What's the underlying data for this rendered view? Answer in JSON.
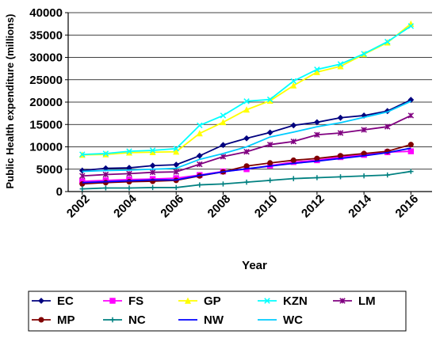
{
  "chart_data": {
    "type": "line",
    "title": "",
    "xlabel": "Year",
    "ylabel": "Public Health expenditure (millions)",
    "xlim": [
      2002,
      2016
    ],
    "ylim": [
      0,
      40000
    ],
    "x_ticks": [
      "2002",
      "2004",
      "2006",
      "2008",
      "2010",
      "2012",
      "2014",
      "2016"
    ],
    "y_ticks": [
      "0",
      "5000",
      "10000",
      "15000",
      "20000",
      "25000",
      "30000",
      "35000",
      "40000"
    ],
    "grid": "horizontal",
    "legend_position": "bottom",
    "x": [
      2002,
      2003,
      2004,
      2005,
      2006,
      2007,
      2008,
      2009,
      2010,
      2011,
      2012,
      2013,
      2014,
      2015,
      2016
    ],
    "series": [
      {
        "name": "EC",
        "color": "#00007f",
        "marker": "diamond",
        "values": [
          4700,
          5200,
          5300,
          5800,
          6000,
          8000,
          10400,
          11900,
          13200,
          14800,
          15500,
          16500,
          17000,
          18000,
          20500
        ]
      },
      {
        "name": "FS",
        "color": "#ff00ff",
        "marker": "square",
        "values": [
          2300,
          2500,
          2700,
          2800,
          3000,
          3700,
          4500,
          5000,
          5800,
          6600,
          7000,
          7700,
          8200,
          8800,
          9000
        ]
      },
      {
        "name": "GP",
        "color": "#ffff00",
        "marker": "triangle",
        "values": [
          8200,
          8300,
          8700,
          8800,
          8900,
          13000,
          15500,
          18300,
          20300,
          23700,
          26700,
          28000,
          30700,
          33300,
          37500
        ]
      },
      {
        "name": "KZN",
        "color": "#00ffff",
        "marker": "x",
        "values": [
          8300,
          8500,
          9000,
          9200,
          9600,
          14800,
          17000,
          20200,
          20600,
          24700,
          27300,
          28500,
          30800,
          33500,
          37000
        ]
      },
      {
        "name": "LM",
        "color": "#800080",
        "marker": "star",
        "values": [
          3500,
          3800,
          4000,
          4300,
          4400,
          6100,
          7800,
          8900,
          10500,
          11200,
          12700,
          13100,
          13800,
          14500,
          17000
        ]
      },
      {
        "name": "MP",
        "color": "#800000",
        "marker": "circle",
        "values": [
          1700,
          2000,
          2200,
          2300,
          2500,
          3500,
          4400,
          5700,
          6400,
          7000,
          7400,
          8000,
          8500,
          9000,
          10500
        ]
      },
      {
        "name": "NC",
        "color": "#008080",
        "marker": "plus",
        "values": [
          600,
          800,
          800,
          900,
          900,
          1500,
          1700,
          2100,
          2500,
          2900,
          3100,
          3300,
          3500,
          3700,
          4500
        ]
      },
      {
        "name": "NW",
        "color": "#0000ff",
        "marker": "none",
        "values": [
          2000,
          2200,
          2400,
          2600,
          2600,
          3600,
          4400,
          5100,
          5700,
          6300,
          6800,
          7400,
          8000,
          8700,
          9700
        ]
      },
      {
        "name": "WC",
        "color": "#00ccff",
        "marker": "none",
        "values": [
          4500,
          4700,
          4800,
          5000,
          5200,
          7200,
          8500,
          10000,
          12200,
          13300,
          14500,
          15400,
          16600,
          17800,
          20200
        ]
      }
    ]
  }
}
